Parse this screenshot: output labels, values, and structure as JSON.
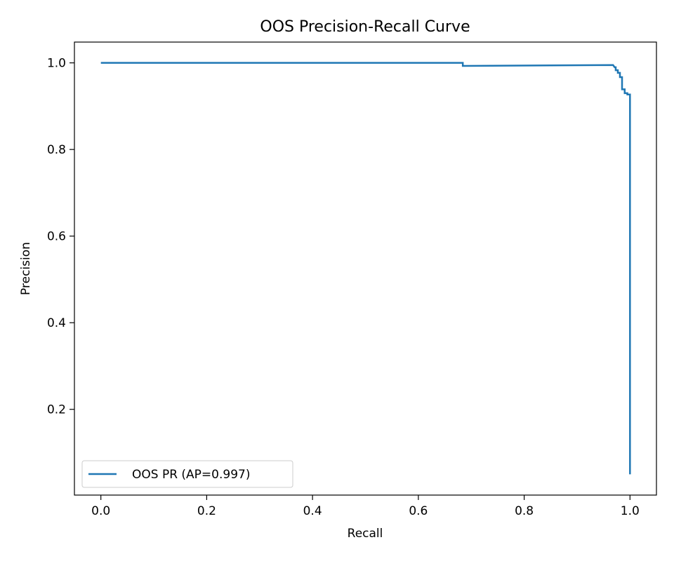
{
  "chart_data": {
    "type": "line",
    "title": "OOS Precision-Recall Curve",
    "xlabel": "Recall",
    "ylabel": "Precision",
    "xlim": [
      -0.05,
      1.05
    ],
    "ylim": [
      0.002,
      1.048
    ],
    "grid": false,
    "legend_position": "lower-left",
    "xticks": [
      {
        "value": 0.0,
        "label": "0.0"
      },
      {
        "value": 0.2,
        "label": "0.2"
      },
      {
        "value": 0.4,
        "label": "0.4"
      },
      {
        "value": 0.6,
        "label": "0.6"
      },
      {
        "value": 0.8,
        "label": "0.8"
      },
      {
        "value": 1.0,
        "label": "1.0"
      }
    ],
    "yticks": [
      {
        "value": 0.2,
        "label": "0.2"
      },
      {
        "value": 0.4,
        "label": "0.4"
      },
      {
        "value": 0.6,
        "label": "0.6"
      },
      {
        "value": 0.8,
        "label": "0.8"
      },
      {
        "value": 1.0,
        "label": "1.0"
      }
    ],
    "series": [
      {
        "name": "OOS PR (AP=0.997)",
        "color": "#1f77b4",
        "points": [
          [
            0.0,
            1.0
          ],
          [
            0.684,
            1.0
          ],
          [
            0.684,
            0.993
          ],
          [
            0.968,
            0.995
          ],
          [
            0.971,
            0.99
          ],
          [
            0.973,
            0.99
          ],
          [
            0.973,
            0.983
          ],
          [
            0.977,
            0.983
          ],
          [
            0.977,
            0.977
          ],
          [
            0.981,
            0.977
          ],
          [
            0.981,
            0.967
          ],
          [
            0.985,
            0.967
          ],
          [
            0.985,
            0.939
          ],
          [
            0.99,
            0.939
          ],
          [
            0.99,
            0.93
          ],
          [
            0.995,
            0.93
          ],
          [
            0.995,
            0.927
          ],
          [
            1.0,
            0.927
          ],
          [
            1.0,
            0.05
          ]
        ]
      }
    ]
  }
}
